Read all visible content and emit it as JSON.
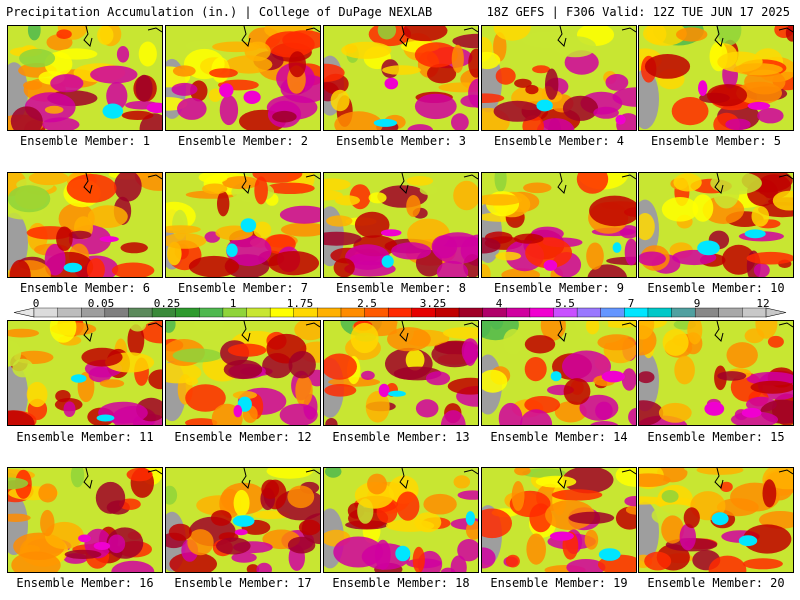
{
  "header": {
    "title": "Precipitation Accumulation (in.) | College of DuPage NEXLAB",
    "run_info": "18Z GEFS | F306 Valid: 12Z TUE JUN 17 2025"
  },
  "colorbar": {
    "labels": [
      "0",
      "0.05",
      "0.25",
      "1",
      "1.75",
      "2.5",
      "3.25",
      "4",
      "5.5",
      "7",
      "9",
      "12"
    ],
    "colors": [
      "#dcdcdc",
      "#bdbdbd",
      "#9e9e9e",
      "#7f7f7f",
      "#5c8a5c",
      "#3a8a3a",
      "#2e9a2e",
      "#4fb84f",
      "#8fd43a",
      "#c8e632",
      "#ffff00",
      "#ffd800",
      "#ffb000",
      "#ff8c00",
      "#ff5a00",
      "#ff2a00",
      "#e60000",
      "#c00000",
      "#a00028",
      "#b0006a",
      "#d000a0",
      "#f000d0",
      "#c850ff",
      "#9a78ff",
      "#6496ff",
      "#00e6ff",
      "#00c8c8",
      "#50a0a0",
      "#888888",
      "#a8a8a8",
      "#c8c8c8"
    ]
  },
  "members": [
    {
      "label": "Ensemble Member: 1"
    },
    {
      "label": "Ensemble Member: 2"
    },
    {
      "label": "Ensemble Member: 3"
    },
    {
      "label": "Ensemble Member: 4"
    },
    {
      "label": "Ensemble Member: 5"
    },
    {
      "label": "Ensemble Member: 6"
    },
    {
      "label": "Ensemble Member: 7"
    },
    {
      "label": "Ensemble Member: 8"
    },
    {
      "label": "Ensemble Member: 9"
    },
    {
      "label": "Ensemble Member: 10"
    },
    {
      "label": "Ensemble Member: 11"
    },
    {
      "label": "Ensemble Member: 12"
    },
    {
      "label": "Ensemble Member: 13"
    },
    {
      "label": "Ensemble Member: 14"
    },
    {
      "label": "Ensemble Member: 15"
    },
    {
      "label": "Ensemble Member: 16"
    },
    {
      "label": "Ensemble Member: 17"
    },
    {
      "label": "Ensemble Member: 18"
    },
    {
      "label": "Ensemble Member: 19"
    },
    {
      "label": "Ensemble Member: 20"
    }
  ]
}
